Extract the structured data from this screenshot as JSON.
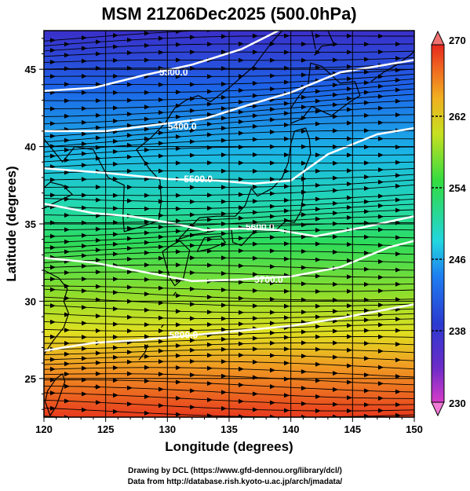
{
  "title": "MSM 21Z06Dec2025 (500.0hPa)",
  "x_axis_label": "Longitude (degrees)",
  "y_axis_label": "Latitude  (degrees)",
  "x_ticks": [
    "120",
    "125",
    "130",
    "135",
    "140",
    "145",
    "150"
  ],
  "y_ticks": [
    "25",
    "30",
    "35",
    "40",
    "45"
  ],
  "colorbar_ticks": [
    "270",
    "262",
    "254",
    "246",
    "238",
    "230"
  ],
  "contour_labels": [
    "5300.0",
    "5400.0",
    "5500.0",
    "5600.0",
    "5700.0",
    "5800.0"
  ],
  "credits": {
    "line1": "Drawing by DCL (https://www.gfd-dennou.org/library/dcl/)",
    "line2": "Data from http://database.rish.kyoto-u.ac.jp/arch/jmadata/"
  },
  "map": {
    "lon_range": [
      120,
      150
    ],
    "lat_range": [
      22.5,
      47.5
    ],
    "temperature_range_K": [
      230,
      270
    ],
    "colormap_stops": [
      "#d63bc8",
      "#3a2fc9",
      "#1e7cf0",
      "#22d6e0",
      "#2ddc5a",
      "#d9e020",
      "#f07a20",
      "#e6281e"
    ],
    "colorbar_end_colors": {
      "top": "#f07070",
      "bottom": "#f07ad6"
    }
  }
}
